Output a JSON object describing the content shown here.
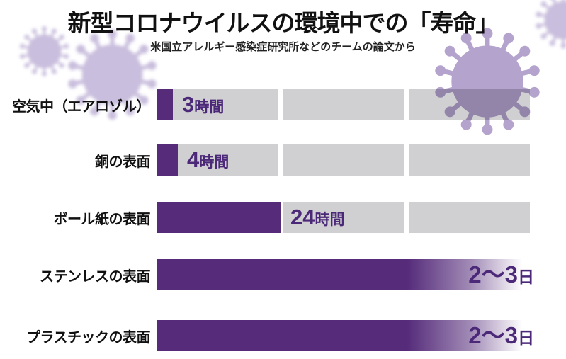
{
  "title": "新型コロナウイルスの環境中での「寿命」",
  "subtitle": "米国立アレルギー感染症研究所などのチームの論文から",
  "colors": {
    "bar_purple": "#552b7a",
    "track_gray": "#d0d0d2",
    "value_text_purple": "#4b2878",
    "virus_light": "#c9bedd",
    "virus_dark": "#b3a3cd",
    "title_black": "#111111"
  },
  "chart_data": {
    "type": "bar",
    "orientation": "horizontal",
    "title": "新型コロナウイルスの環境中での「寿命」",
    "subtitle": "米国立アレルギー感染症研究所などのチームの論文から",
    "axis_max_hours": 72,
    "track_segments": 3,
    "track_segment_unit": "24時間 (1日) per segment",
    "categories": [
      "空気中（エアロゾル）",
      "銅の表面",
      "ボール紙の表面",
      "ステンレスの表面",
      "プラスチックの表面"
    ],
    "value_labels": [
      "3時間",
      "4時間",
      "24時間",
      "2〜3日",
      "2〜3日"
    ],
    "rows": [
      {
        "label": "空気中（エアロゾル）",
        "value_number": "3",
        "value_unit": "時間",
        "hours": 3,
        "full_range": false
      },
      {
        "label": "銅の表面",
        "value_number": "4",
        "value_unit": "時間",
        "hours": 4,
        "full_range": false
      },
      {
        "label": "ボール紙の表面",
        "value_number": "24",
        "value_unit": "時間",
        "hours": 24,
        "full_range": false
      },
      {
        "label": "ステンレスの表面",
        "value_number": "2〜3",
        "value_unit": "日",
        "hours_min": 48,
        "hours_max": 72,
        "full_range": true
      },
      {
        "label": "プラスチックの表面",
        "value_number": "2〜3",
        "value_unit": "日",
        "hours_min": 48,
        "hours_max": 72,
        "full_range": true
      }
    ]
  }
}
